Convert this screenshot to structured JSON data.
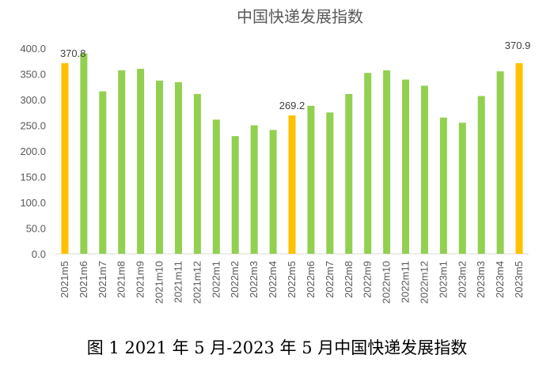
{
  "chart_data": {
    "type": "bar",
    "title": "中国快递发展指数",
    "categories": [
      "2021m5",
      "2021m6",
      "2021m7",
      "2021m8",
      "2021m9",
      "2021m10",
      "2021m11",
      "2021m12",
      "2022m1",
      "2022m2",
      "2022m3",
      "2022m4",
      "2022m5",
      "2022m6",
      "2022m7",
      "2022m8",
      "2022m9",
      "2022m10",
      "2022m11",
      "2022m12",
      "2023m1",
      "2023m2",
      "2023m3",
      "2023m4",
      "2023m5"
    ],
    "values": [
      370.8,
      390,
      316,
      357,
      360,
      337,
      334,
      311,
      261,
      229,
      250,
      241,
      269.2,
      288,
      275,
      311,
      352,
      357,
      339,
      327,
      265,
      255,
      307,
      355,
      370.9
    ],
    "highlighted_indices": [
      0,
      12,
      24
    ],
    "data_labels": [
      {
        "index": 0,
        "text": "370.8"
      },
      {
        "index": 12,
        "text": "269.2"
      },
      {
        "index": 24,
        "text": "370.9"
      }
    ],
    "ylim": [
      0,
      400
    ],
    "yticks": [
      0,
      50,
      100,
      150,
      200,
      250,
      300,
      350,
      400
    ],
    "ytick_labels": [
      "0.0",
      "50.0",
      "100.0",
      "150.0",
      "200.0",
      "250.0",
      "300.0",
      "350.0",
      "400.0"
    ],
    "xlabel": "",
    "ylabel": "",
    "grid": false,
    "legend": "none",
    "colors": {
      "normal": "#92D050",
      "highlight": "#FFC000"
    }
  },
  "caption": "图 1 2021 年 5 月-2023 年 5 月中国快递发展指数"
}
